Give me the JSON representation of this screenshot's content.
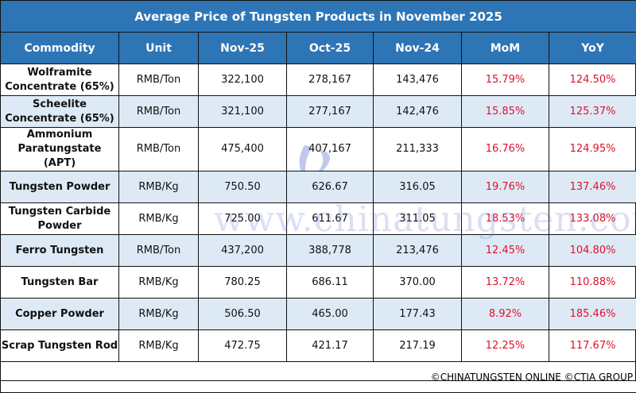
{
  "title": "Average Price of Tungsten Products in November 2025",
  "columns": [
    "Commodity",
    "Unit",
    "Nov-25",
    "Oct-25",
    "Nov-24",
    "MoM",
    "YoY"
  ],
  "rows": [
    {
      "commodity": "Wolframite Concentrate (65%)",
      "unit": "RMB/Ton",
      "nov25": "322,100",
      "oct25": "278,167",
      "nov24": "143,476",
      "mom": "15.79%",
      "yoy": "124.50%"
    },
    {
      "commodity": "Scheelite Concentrate (65%)",
      "unit": "RMB/Ton",
      "nov25": "321,100",
      "oct25": "277,167",
      "nov24": "142,476",
      "mom": "15.85%",
      "yoy": "125.37%"
    },
    {
      "commodity": "Ammonium Paratungstate (APT)",
      "unit": "RMB/Ton",
      "nov25": "475,400",
      "oct25": "407,167",
      "nov24": "211,333",
      "mom": "16.76%",
      "yoy": "124.95%"
    },
    {
      "commodity": "Tungsten Powder",
      "unit": "RMB/Kg",
      "nov25": "750.50",
      "oct25": "626.67",
      "nov24": "316.05",
      "mom": "19.76%",
      "yoy": "137.46%"
    },
    {
      "commodity": "Tungsten Carbide Powder",
      "unit": "RMB/Kg",
      "nov25": "725.00",
      "oct25": "611.67",
      "nov24": "311.05",
      "mom": "18.53%",
      "yoy": "133.08%"
    },
    {
      "commodity": "Ferro Tungsten",
      "unit": "RMB/Ton",
      "nov25": "437,200",
      "oct25": "388,778",
      "nov24": "213,476",
      "mom": "12.45%",
      "yoy": "104.80%"
    },
    {
      "commodity": "Tungsten Bar",
      "unit": "RMB/Kg",
      "nov25": "780.25",
      "oct25": "686.11",
      "nov24": "370.00",
      "mom": "13.72%",
      "yoy": "110.88%"
    },
    {
      "commodity": "Copper Powder",
      "unit": "RMB/Kg",
      "nov25": "506.50",
      "oct25": "465.00",
      "nov24": "177.43",
      "mom": "8.92%",
      "yoy": "185.46%"
    },
    {
      "commodity": "Scrap Tungsten Rod",
      "unit": "RMB/Kg",
      "nov25": "472.75",
      "oct25": "421.17",
      "nov24": "217.19",
      "mom": "12.25%",
      "yoy": "117.67%"
    }
  ],
  "footer": "©CHINATUNGSTEN ONLINE ©CTIA GROUP",
  "watermark": "www.chinatungsten.com",
  "colors": {
    "header": "#2e75b6",
    "alt_row": "#ddeaf6",
    "percent": "#e0102a"
  }
}
